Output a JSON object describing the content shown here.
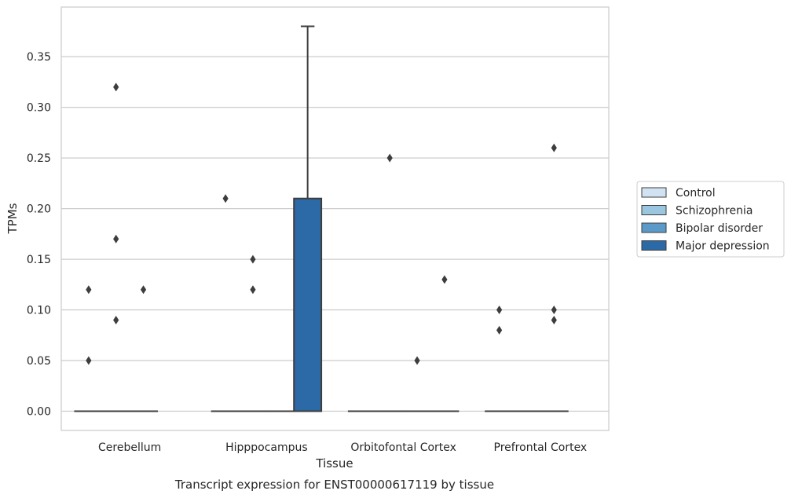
{
  "chart_data": {
    "type": "box",
    "xlabel": "Tissue",
    "ylabel": "TPMs",
    "caption": "Transcript expression for ENST00000617119 by tissue",
    "categories": [
      "Cerebellum",
      "Hipppocampus",
      "Orbitofontal Cortex",
      "Prefrontal Cortex"
    ],
    "yticks": [
      "0.00",
      "0.05",
      "0.10",
      "0.15",
      "0.20",
      "0.25",
      "0.30",
      "0.35"
    ],
    "ylim": [
      -0.019,
      0.399
    ],
    "grid": true,
    "legend_position": "right",
    "series": [
      {
        "name": "Control",
        "color": "#d1e2f2",
        "boxes": [
          {
            "q1": 0,
            "median": 0,
            "q3": 0,
            "whisker_low": 0,
            "whisker_high": 0,
            "outliers": [
              0.05,
              0.12
            ]
          },
          {
            "q1": 0,
            "median": 0,
            "q3": 0,
            "whisker_low": 0,
            "whisker_high": 0,
            "outliers": [
              0.21
            ]
          },
          {
            "q1": 0,
            "median": 0,
            "q3": 0,
            "whisker_low": 0,
            "whisker_high": 0,
            "outliers": []
          },
          {
            "q1": 0,
            "median": 0,
            "q3": 0,
            "whisker_low": 0,
            "whisker_high": 0,
            "outliers": [
              0.08,
              0.1
            ]
          }
        ]
      },
      {
        "name": "Schizophrenia",
        "color": "#9ac7df",
        "boxes": [
          {
            "q1": 0,
            "median": 0,
            "q3": 0,
            "whisker_low": 0,
            "whisker_high": 0,
            "outliers": [
              0.09,
              0.17,
              0.32
            ]
          },
          {
            "q1": 0,
            "median": 0,
            "q3": 0,
            "whisker_low": 0,
            "whisker_high": 0,
            "outliers": [
              0.12,
              0.15
            ]
          },
          {
            "q1": 0,
            "median": 0,
            "q3": 0,
            "whisker_low": 0,
            "whisker_high": 0,
            "outliers": [
              0.25
            ]
          },
          {
            "q1": 0,
            "median": 0,
            "q3": 0,
            "whisker_low": 0,
            "whisker_high": 0,
            "outliers": []
          }
        ]
      },
      {
        "name": "Bipolar disorder",
        "color": "#5b9ac8",
        "boxes": [
          {
            "q1": 0,
            "median": 0,
            "q3": 0,
            "whisker_low": 0,
            "whisker_high": 0,
            "outliers": [
              0.12
            ]
          },
          {
            "q1": 0,
            "median": 0,
            "q3": 0,
            "whisker_low": 0,
            "whisker_high": 0,
            "outliers": []
          },
          {
            "q1": 0,
            "median": 0,
            "q3": 0,
            "whisker_low": 0,
            "whisker_high": 0,
            "outliers": [
              0.05
            ]
          },
          {
            "q1": 0,
            "median": 0,
            "q3": 0,
            "whisker_low": 0,
            "whisker_high": 0,
            "outliers": [
              0.09,
              0.1,
              0.26
            ]
          }
        ]
      },
      {
        "name": "Major depression",
        "color": "#2c69a7",
        "boxes": [
          null,
          {
            "q1": 0,
            "median": 0,
            "q3": 0.21,
            "whisker_low": 0,
            "whisker_high": 0.38,
            "outliers": []
          },
          {
            "q1": 0,
            "median": 0,
            "q3": 0,
            "whisker_low": 0,
            "whisker_high": 0,
            "outliers": [
              0.13
            ]
          },
          null
        ]
      }
    ]
  }
}
